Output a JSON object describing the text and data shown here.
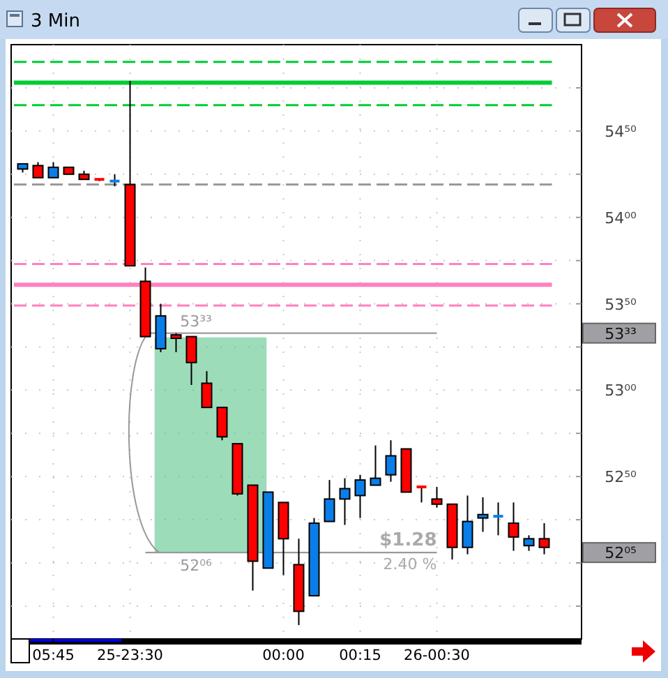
{
  "chart_data": {
    "type": "candlestick",
    "title": "3 Min",
    "categories": [
      null,
      null,
      "05:45",
      null,
      null,
      null,
      null,
      "25-23:30",
      null,
      null,
      null,
      null,
      null,
      null,
      null,
      null,
      null,
      "00:00",
      null,
      null,
      null,
      null,
      "00:15",
      null,
      null,
      null,
      null,
      "26-00:30",
      null,
      null,
      null,
      null,
      null,
      null,
      null
    ],
    "ohlc": [
      [
        54.28,
        54.31,
        54.26,
        54.31
      ],
      [
        54.3,
        54.32,
        54.23,
        54.23
      ],
      [
        54.23,
        54.32,
        54.23,
        54.29
      ],
      [
        54.29,
        54.29,
        54.25,
        54.25
      ],
      [
        54.25,
        54.27,
        54.22,
        54.22
      ],
      [
        54.22,
        54.22,
        54.21,
        54.22
      ],
      [
        54.21,
        54.25,
        54.18,
        54.22
      ],
      [
        54.19,
        54.79,
        53.72,
        53.72
      ],
      [
        53.63,
        53.71,
        53.31,
        53.31
      ],
      [
        53.24,
        53.5,
        53.22,
        53.43
      ],
      [
        53.32,
        53.33,
        53.22,
        53.3
      ],
      [
        53.31,
        53.31,
        53.03,
        53.16
      ],
      [
        53.04,
        53.11,
        52.9,
        52.9
      ],
      [
        52.9,
        52.9,
        52.71,
        52.73
      ],
      [
        52.69,
        52.69,
        52.39,
        52.4
      ],
      [
        52.45,
        52.45,
        51.84,
        52.01
      ],
      [
        51.97,
        52.41,
        51.97,
        52.41
      ],
      [
        52.35,
        52.35,
        51.93,
        52.14
      ],
      [
        51.99,
        52.14,
        51.64,
        51.72
      ],
      [
        51.81,
        52.26,
        51.81,
        52.23
      ],
      [
        52.24,
        52.48,
        52.24,
        52.37
      ],
      [
        52.37,
        52.49,
        52.22,
        52.43
      ],
      [
        52.39,
        52.51,
        52.26,
        52.48
      ],
      [
        52.45,
        52.68,
        52.45,
        52.49
      ],
      [
        52.51,
        52.71,
        52.47,
        52.62
      ],
      [
        52.66,
        52.66,
        52.41,
        52.41
      ],
      [
        52.44,
        52.44,
        52.35,
        52.43
      ],
      [
        52.37,
        52.44,
        52.32,
        52.34
      ],
      [
        52.34,
        52.34,
        52.02,
        52.09
      ],
      [
        52.09,
        52.39,
        52.05,
        52.24
      ],
      [
        52.26,
        52.38,
        52.18,
        52.28
      ],
      [
        52.27,
        52.35,
        52.16,
        52.27
      ],
      [
        52.23,
        52.35,
        52.07,
        52.15
      ],
      [
        52.1,
        52.16,
        52.07,
        52.14
      ],
      [
        52.14,
        52.23,
        52.05,
        52.09
      ]
    ],
    "colors": [
      "#0a7ee8",
      "#ff0000",
      "#0a7ee8",
      "#ff0000",
      "#ff0000",
      "#ff0000",
      "#0a7ee8",
      "#ff0000",
      "#ff0000",
      "#0a7ee8",
      "#ff0000",
      "#ff0000",
      "#ff0000",
      "#ff0000",
      "#ff0000",
      "#ff0000",
      "#0a7ee8",
      "#ff0000",
      "#ff0000",
      "#0a7ee8",
      "#0a7ee8",
      "#0a7ee8",
      "#0a7ee8",
      "#0a7ee8",
      "#0a7ee8",
      "#ff0000",
      "#ff0000",
      "#ff0000",
      "#ff0000",
      "#0a7ee8",
      "#0a7ee8",
      "#0a7ee8",
      "#ff0000",
      "#0a7ee8",
      "#ff0000"
    ],
    "ylim": [
      51.56,
      55.0
    ],
    "yticks": [
      {
        "value": 51.75,
        "label": null
      },
      {
        "value": 52.0,
        "label": null
      },
      {
        "value": 52.25,
        "label": null
      },
      {
        "value": 52.5,
        "label": "52⁵⁰"
      },
      {
        "value": 52.75,
        "label": null
      },
      {
        "value": 53.0,
        "label": "53⁰⁰"
      },
      {
        "value": 53.25,
        "label": null
      },
      {
        "value": 53.5,
        "label": "53⁵⁰"
      },
      {
        "value": 53.75,
        "label": null
      },
      {
        "value": 54.0,
        "label": "54⁰⁰"
      },
      {
        "value": 54.25,
        "label": null
      },
      {
        "value": 54.5,
        "label": "54⁵⁰"
      },
      {
        "value": 54.75,
        "label": null
      }
    ],
    "grid": true,
    "ref_lines": [
      {
        "axis": "y",
        "value": 54.9,
        "color": "#00cc33",
        "line_style": "dashed"
      },
      {
        "axis": "y",
        "value": 54.78,
        "color": "#00cc33",
        "line_style": "solid"
      },
      {
        "axis": "y",
        "value": 54.65,
        "color": "#00cc33",
        "line_style": "dashed"
      },
      {
        "axis": "y",
        "value": 54.19,
        "color": "#999999",
        "line_style": "dashed"
      },
      {
        "axis": "y",
        "value": 53.73,
        "color": "#ff80c0",
        "line_style": "dashed"
      },
      {
        "axis": "y",
        "value": 53.61,
        "color": "#ff80c0",
        "line_style": "solid"
      },
      {
        "axis": "y",
        "value": 53.49,
        "color": "#ff80c0",
        "line_style": "dashed"
      },
      {
        "axis": "y",
        "value": 53.33,
        "label": "53³³",
        "color": "#999999",
        "line_style": "solid"
      },
      {
        "axis": "y",
        "value": 52.06,
        "label": "52⁰⁶",
        "color": "#999999",
        "line_style": "solid"
      }
    ],
    "annotations": [
      "$1.28",
      "2.40 %",
      "53³³",
      "52⁰⁵"
    ]
  }
}
